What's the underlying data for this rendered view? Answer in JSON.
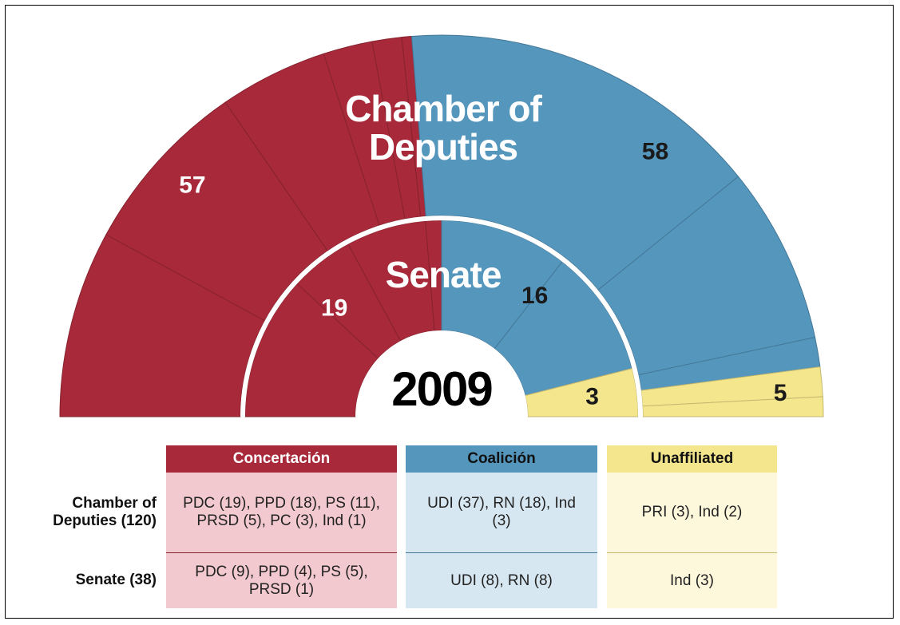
{
  "chart_data": [
    {
      "type": "parliament",
      "title": "Chamber of Deputies",
      "series": [
        {
          "color": "#a82a3a",
          "values": [
            19,
            18,
            11,
            5,
            3,
            1
          ],
          "total": 57,
          "label_color": "#ffffff"
        },
        {
          "color": "#5596bd",
          "values": [
            37,
            18,
            3
          ],
          "total": 58,
          "label_color": "#1a1a1a"
        },
        {
          "color": "#f4e68c",
          "values": [
            3,
            2
          ],
          "total": 5,
          "label_color": "#1a1a1a"
        }
      ]
    },
    {
      "type": "parliament",
      "title": "Senate",
      "series": [
        {
          "color": "#a82a3a",
          "values": [
            9,
            4,
            5,
            1
          ],
          "total": 19,
          "label_color": "#ffffff"
        },
        {
          "color": "#5596bd",
          "values": [
            8,
            8
          ],
          "total": 16,
          "label_color": "#1a1a1a"
        },
        {
          "color": "#f4e68c",
          "values": [
            3
          ],
          "total": 3,
          "label_color": "#1a1a1a"
        }
      ]
    }
  ],
  "year": "2009",
  "table": {
    "headers": [
      "Concertación",
      "Coalición",
      "Unaffiliated"
    ],
    "rows": [
      {
        "label": "Chamber of Deputies (120)",
        "cells": [
          "PDC (19), PPD (18), PS (11), PRSD (5), PC (3), Ind (1)",
          "UDI (37), RN (18), Ind (3)",
          "PRI (3), Ind (2)"
        ]
      },
      {
        "label": "Senate (38)",
        "cells": [
          "PDC (9), PPD (4), PS (5), PRSD (1)",
          "UDI (8), RN (8)",
          "Ind (3)"
        ]
      }
    ]
  }
}
